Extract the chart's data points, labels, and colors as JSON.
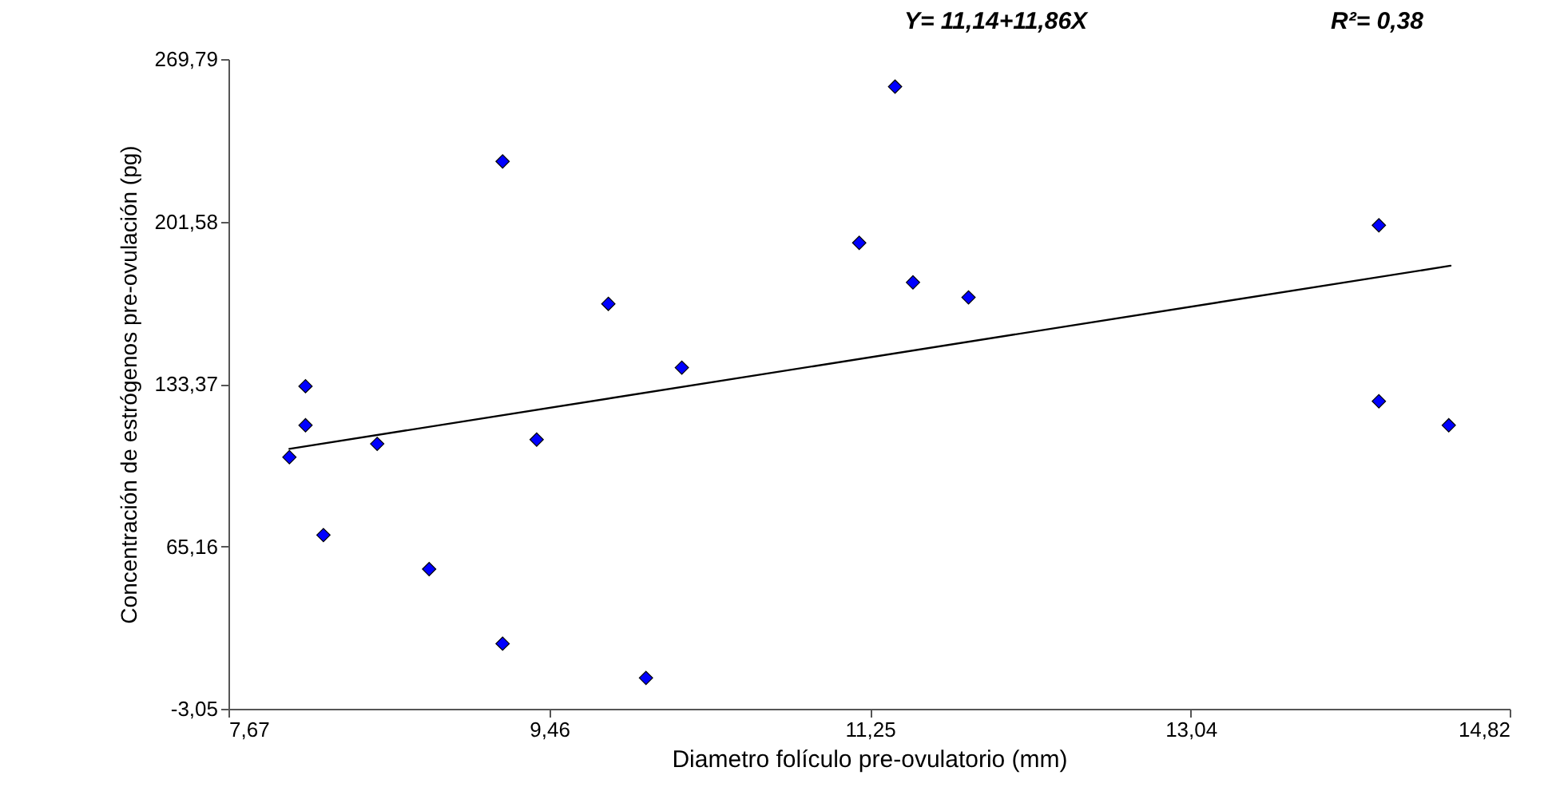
{
  "chart_data": {
    "type": "scatter",
    "xlabel": "Diametro folículo pre-ovulatorio (mm)",
    "ylabel": "Concentración de estrógenos pre-ovulación (pg)",
    "annotations": [
      "Y= 11,14+11,86X",
      "R²= 0,38"
    ],
    "grid": false,
    "xlim": [
      7.67,
      14.82
    ],
    "xticks": [
      {
        "value": 7.67,
        "label": "7,67"
      },
      {
        "value": 9.46,
        "label": "9,46"
      },
      {
        "value": 11.25,
        "label": "11,25"
      },
      {
        "value": 13.04,
        "label": "13,04"
      },
      {
        "value": 14.82,
        "label": "14,82"
      }
    ],
    "ylim": [
      -3.05,
      269.79
    ],
    "yticks": [
      {
        "value": -3.05,
        "label": "-3,05"
      },
      {
        "value": 65.16,
        "label": "65,16"
      },
      {
        "value": 133.37,
        "label": "133,37"
      },
      {
        "value": 201.58,
        "label": "201,58"
      },
      {
        "value": 269.79,
        "label": "269,79"
      }
    ],
    "series": [
      {
        "color": "#0000ff",
        "marker": "diamond",
        "x": [
          8.01,
          8.1,
          8.1,
          8.2,
          8.5,
          8.79,
          9.2,
          9.2,
          9.39,
          9.79,
          10.0,
          10.2,
          11.19,
          11.39,
          11.49,
          11.8,
          14.09,
          14.09,
          14.48
        ],
        "values": [
          102.6,
          132.4,
          116.0,
          69.9,
          108.2,
          55.6,
          226.8,
          24.3,
          110.0,
          167.0,
          9.9,
          140.2,
          192.6,
          258.2,
          176.0,
          169.7,
          200.0,
          126.1,
          116.0
        ]
      },
      {
        "type": "line",
        "color": "#000000",
        "marker": "none",
        "x": [
          8.01,
          14.49
        ],
        "values": [
          106.1,
          183.0
        ]
      }
    ]
  }
}
